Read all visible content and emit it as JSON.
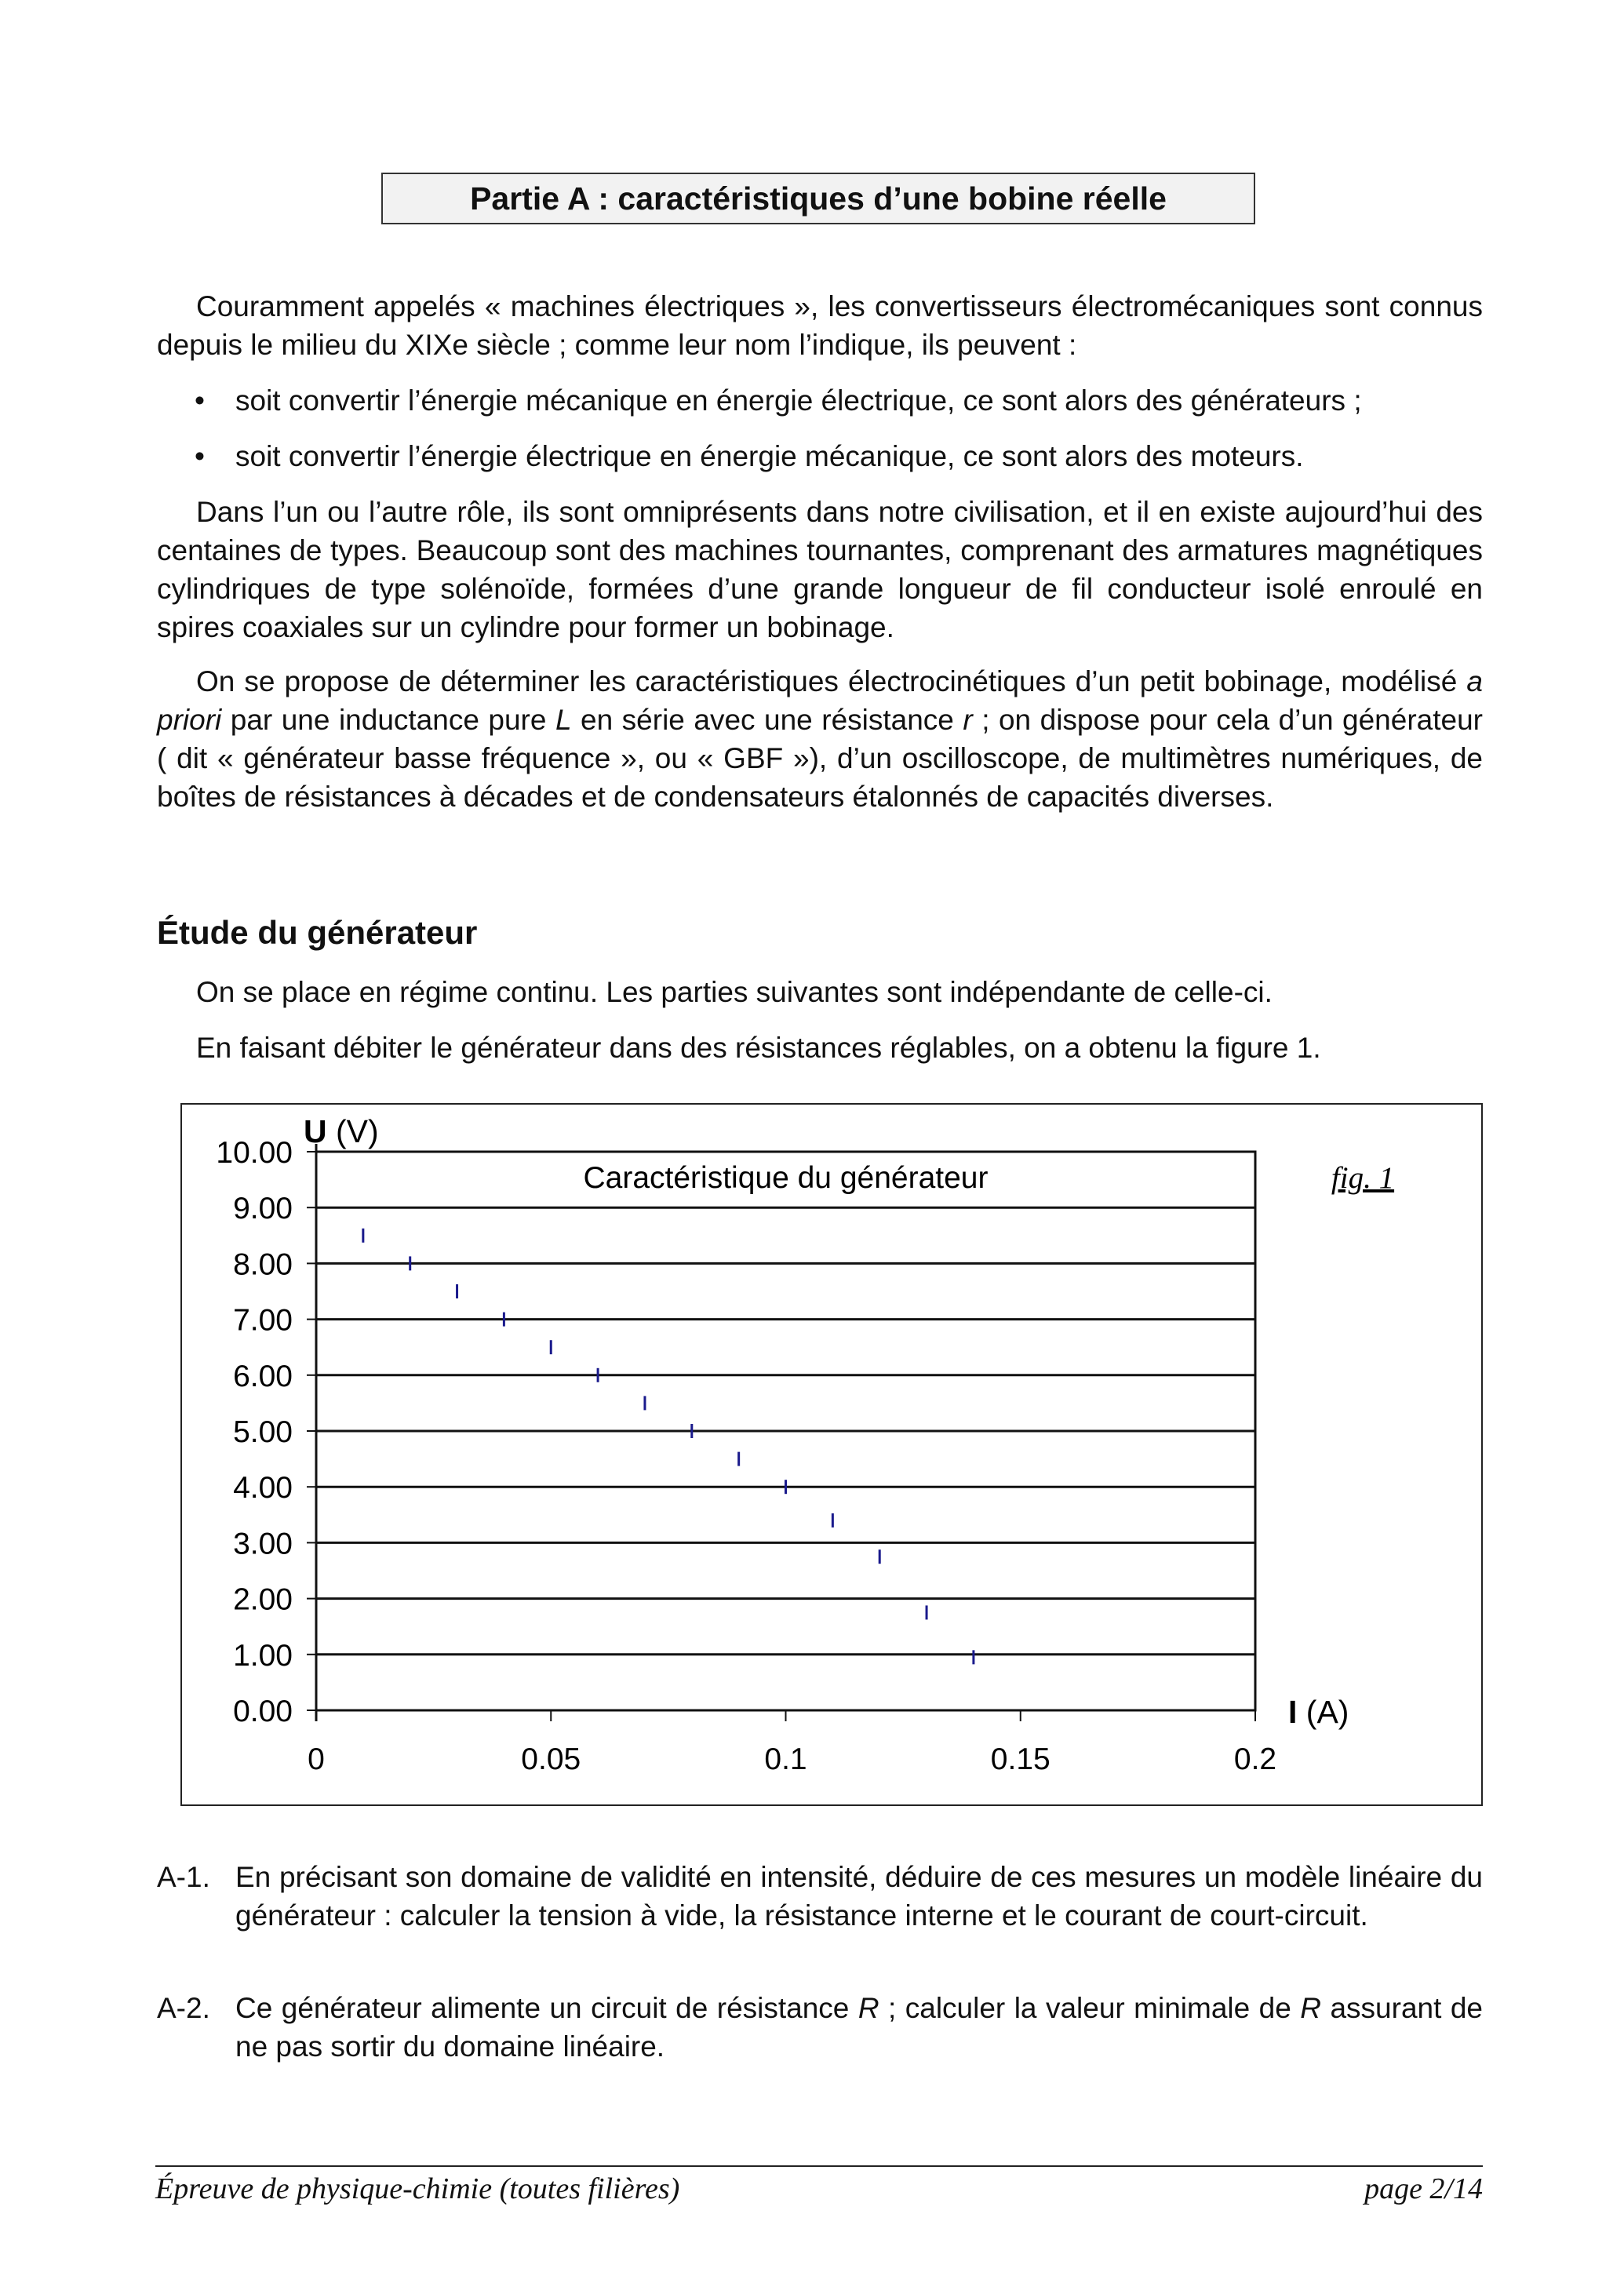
{
  "title": "Partie A : caractéristiques d’une bobine réelle",
  "intro": {
    "p1": "Couramment appelés « machines électriques », les convertisseurs électromécaniques sont connus depuis le milieu du XIXe siècle ; comme leur nom l’indique, ils peuvent :",
    "bullets": [
      "soit convertir l’énergie mécanique en énergie électrique, ce sont alors des générateurs ;",
      "soit convertir l’énergie électrique en énergie mécanique, ce sont alors des moteurs."
    ],
    "p2": "Dans l’un ou l’autre rôle, ils sont omniprésents dans notre civilisation, et il en existe aujourd’hui des centaines de types. Beaucoup sont des machines tournantes, comprenant des armatures magnétiques cylindriques de type solénoïde, formées d’une grande longueur de fil conducteur isolé enroulé en spires coaxiales sur un cylindre pour former un bobinage.",
    "p3a": "On se propose de déterminer les caractéristiques électrocinétiques d’un petit bobinage, modélisé ",
    "p3_apriori": "a priori",
    "p3b": " par une inductance pure ",
    "p3_L": "L",
    "p3c": " en série avec une résistance ",
    "p3_r": "r",
    "p3d": " ; on dispose pour cela d’un générateur ( dit « générateur basse fréquence », ou « GBF »), d’un oscilloscope, de multimètres numériques, de boîtes de résistances à décades et de condensateurs étalonnés de capacités diverses."
  },
  "section": {
    "heading": "Étude du générateur",
    "l1": "On se place en régime continu. Les parties suivantes sont indépendante de celle-ci.",
    "l2": "En faisant débiter le générateur dans des résistances réglables, on a obtenu la figure 1."
  },
  "chart_data": {
    "type": "scatter",
    "title": "Caractéristique du générateur",
    "figure_label": "fig. 1",
    "xlabel_bold": "I",
    "xlabel_unit": "(A)",
    "ylabel_bold": "U",
    "ylabel_unit": "(V)",
    "xlim": [
      0,
      0.2
    ],
    "ylim": [
      0,
      10
    ],
    "xticks": [
      "0",
      "0.05",
      "0.1",
      "0.15",
      "0.2"
    ],
    "yticks": [
      "0.00",
      "1.00",
      "2.00",
      "3.00",
      "4.00",
      "5.00",
      "6.00",
      "7.00",
      "8.00",
      "9.00",
      "10.00"
    ],
    "grid": "horizontal",
    "marker": "vertical-dash",
    "color": "#1a1a8c",
    "x": [
      0.01,
      0.02,
      0.03,
      0.04,
      0.05,
      0.06,
      0.07,
      0.08,
      0.09,
      0.1,
      0.11,
      0.12,
      0.13,
      0.14
    ],
    "y": [
      8.5,
      8.0,
      7.5,
      7.0,
      6.5,
      6.0,
      5.5,
      5.0,
      4.5,
      4.0,
      3.4,
      2.75,
      1.75,
      0.95
    ]
  },
  "questions": [
    {
      "num": "A-1.",
      "text": "En précisant son domaine de validité en intensité, déduire de ces mesures un modèle linéaire du générateur : calculer la tension à vide, la résistance interne et le courant de court-circuit."
    },
    {
      "num": "A-2.",
      "a": "Ce générateur alimente un circuit de résistance ",
      "R1": "R",
      "b": " ; calculer la valeur minimale de ",
      "R2": "R",
      "c": " assurant de ne pas sortir du domaine linéaire."
    }
  ],
  "footer": {
    "left": "Épreuve de physique-chimie (toutes filières)",
    "right": "page 2/14"
  }
}
